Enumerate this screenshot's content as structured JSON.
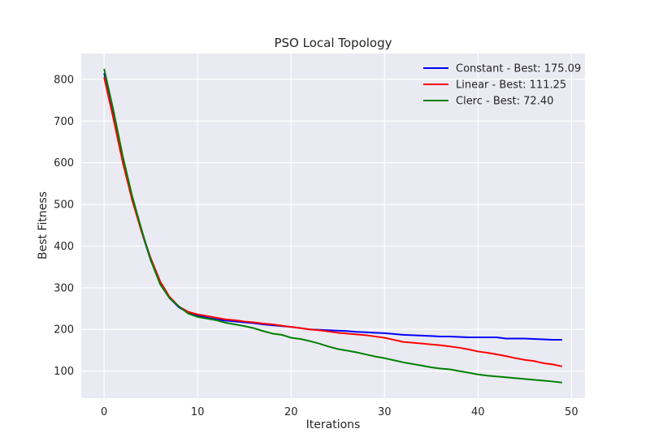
{
  "chart_data": {
    "type": "line",
    "title": "PSO Local Topology",
    "xlabel": "Iterations",
    "ylabel": "Best Fitness",
    "xlim": [
      -2.45,
      51.45
    ],
    "ylim": [
      35,
      862
    ],
    "xticks": [
      0,
      10,
      20,
      30,
      40,
      50
    ],
    "yticks": [
      100,
      200,
      300,
      400,
      500,
      600,
      700,
      800
    ],
    "grid": true,
    "legend_position": "top-right",
    "x": [
      0,
      1,
      2,
      3,
      4,
      5,
      6,
      7,
      8,
      9,
      10,
      11,
      12,
      13,
      14,
      15,
      16,
      17,
      18,
      19,
      20,
      21,
      22,
      23,
      24,
      25,
      26,
      27,
      28,
      29,
      30,
      31,
      32,
      33,
      34,
      35,
      36,
      37,
      38,
      39,
      40,
      41,
      42,
      43,
      44,
      45,
      46,
      47,
      48,
      49
    ],
    "series": [
      {
        "name": "Constant - Best: 175.09",
        "color": "#0000ff",
        "values": [
          815,
          715,
          605,
          515,
          435,
          365,
          310,
          275,
          253,
          240,
          233,
          228,
          224,
          221,
          219,
          217,
          215,
          212,
          210,
          208,
          206,
          203,
          200,
          199,
          198,
          197,
          196,
          194,
          193,
          192,
          191,
          189,
          187,
          186,
          185,
          184,
          183,
          183,
          182,
          181,
          181,
          181,
          181,
          178,
          178,
          178,
          177,
          176,
          175,
          175.09
        ]
      },
      {
        "name": "Linear - Best: 111.25",
        "color": "#ff0000",
        "values": [
          805,
          705,
          600,
          510,
          435,
          370,
          315,
          278,
          255,
          242,
          236,
          232,
          228,
          224,
          222,
          219,
          217,
          214,
          212,
          209,
          206,
          203,
          200,
          198,
          195,
          192,
          190,
          188,
          186,
          183,
          180,
          175,
          170,
          168,
          166,
          164,
          162,
          159,
          156,
          152,
          147,
          144,
          140,
          136,
          131,
          127,
          124,
          119,
          116,
          111.25
        ]
      },
      {
        "name": "Clerc - Best: 72.40",
        "color": "#008000",
        "values": [
          825,
          725,
          615,
          520,
          440,
          365,
          308,
          275,
          255,
          238,
          230,
          226,
          222,
          216,
          212,
          208,
          203,
          196,
          190,
          187,
          180,
          177,
          172,
          166,
          159,
          153,
          149,
          145,
          140,
          135,
          131,
          126,
          121,
          117,
          113,
          109,
          106,
          104,
          100,
          96,
          92,
          89,
          87,
          85,
          83,
          81,
          79,
          77,
          75,
          72.4
        ]
      }
    ]
  }
}
